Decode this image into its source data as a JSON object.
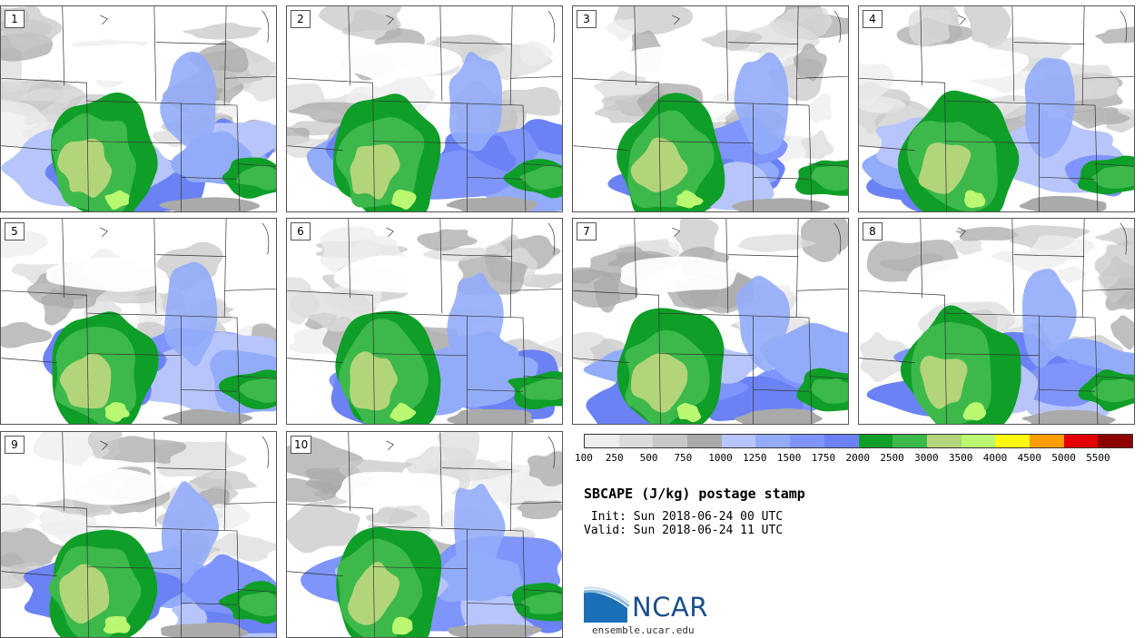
{
  "panels": [
    {
      "label": "1"
    },
    {
      "label": "2"
    },
    {
      "label": "3"
    },
    {
      "label": "4"
    },
    {
      "label": "5"
    },
    {
      "label": "6"
    },
    {
      "label": "7"
    },
    {
      "label": "8"
    },
    {
      "label": "9"
    },
    {
      "label": "10"
    }
  ],
  "colorbar": {
    "colors": [
      "#eeeeee",
      "#dcdcdc",
      "#c8c8c8",
      "#aaaaaa",
      "#b7c5fb",
      "#93acfa",
      "#7f95fb",
      "#6b82f5",
      "#0f9e28",
      "#3cb94a",
      "#b3d57a",
      "#b9f870",
      "#fff812",
      "#ff9e00",
      "#e50000",
      "#8e0000"
    ],
    "tick_labels": [
      "100",
      "250",
      "500",
      "750",
      "1000",
      "1250",
      "1500",
      "1750",
      "2000",
      "2500",
      "3000",
      "3500",
      "4000",
      "4500",
      "5000",
      "5500"
    ]
  },
  "title": "SBCAPE (J/kg) postage stamp",
  "init": " Init: Sun 2018-06-24 00 UTC",
  "valid": "Valid: Sun 2018-06-24 11 UTC",
  "logo": {
    "text": "NCAR",
    "url": "ensemble.ucar.edu"
  }
}
